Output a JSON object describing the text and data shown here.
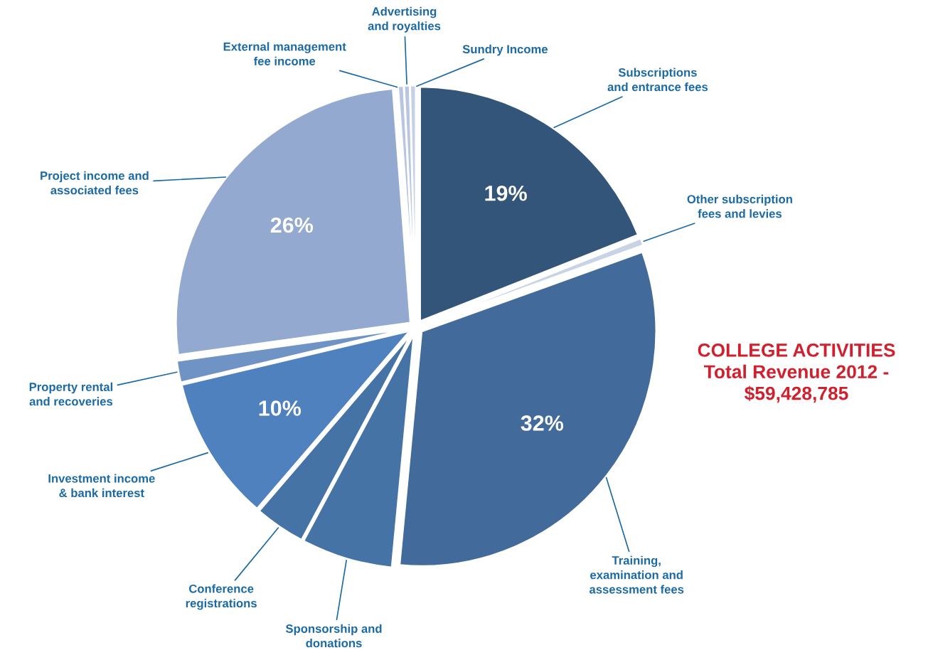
{
  "chart_data": {
    "type": "pie",
    "title": "COLLEGE ACTIVITIES\nTotal Revenue 2012 -\n$59,428,785",
    "categories": [
      "Subscriptions\nand entrance fees",
      "Other subscription\nfees and levies",
      "Training,\nexamination and\nassessment fees",
      "Sponsorship and\ndonations",
      "Conference\nregistrations",
      "Investment income\n& bank interest",
      "Property rental\nand recoveries",
      "Project income and\nassociated fees",
      "External management\nfee income",
      "Advertising\nand royalties",
      "Sundry Income"
    ],
    "values": [
      19,
      0.5,
      32,
      6.3,
      3.5,
      10,
      1.5,
      26,
      0.4,
      0.4,
      0.4
    ],
    "value_labels": [
      "19%",
      null,
      "32%",
      null,
      null,
      "10%",
      null,
      "26%",
      null,
      null,
      null
    ],
    "colors": [
      "#34557a",
      "#c8d3e6",
      "#426b9b",
      "#4673a6",
      "#4673a6",
      "#4e81bd",
      "#6f93c4",
      "#94a9cf",
      "#b9c6e2",
      "#b9c6e2",
      "#c5d0e8"
    ],
    "legend": false
  }
}
